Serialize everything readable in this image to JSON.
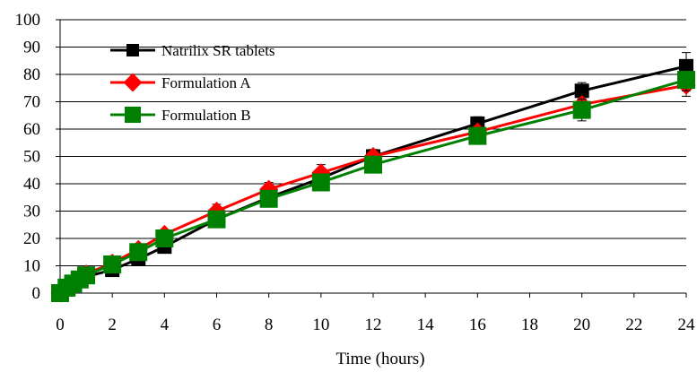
{
  "chart_data": {
    "type": "line",
    "title": "",
    "xlabel": "Time (hours)",
    "ylabel": "",
    "xlim": [
      0,
      24
    ],
    "ylim": [
      0,
      100
    ],
    "x_ticks": [
      0,
      2,
      4,
      6,
      8,
      10,
      12,
      14,
      16,
      18,
      20,
      22,
      24
    ],
    "y_ticks": [
      0,
      10,
      20,
      30,
      40,
      50,
      60,
      70,
      80,
      90,
      100
    ],
    "grid": "horizontal",
    "legend_position": "top-left",
    "series": [
      {
        "name": "Natrilix SR tablets",
        "color": "#000000",
        "marker": "square",
        "x": [
          0,
          0.25,
          0.5,
          0.75,
          1,
          2,
          3,
          4,
          6,
          8,
          10,
          12,
          16,
          20,
          24
        ],
        "y": [
          0,
          1.5,
          3,
          4.5,
          6,
          8.5,
          12.5,
          17,
          27,
          35,
          42,
          50,
          62,
          74,
          83
        ],
        "error": [
          0,
          0,
          0,
          0,
          0,
          1,
          1,
          1,
          2,
          2,
          2.5,
          2.5,
          2.5,
          3,
          5
        ]
      },
      {
        "name": "Formulation A",
        "color": "#ff0000",
        "marker": "diamond",
        "x": [
          0,
          0.25,
          0.5,
          0.75,
          1,
          2,
          3,
          4,
          6,
          8,
          10,
          12,
          16,
          20,
          24
        ],
        "y": [
          0,
          2,
          4,
          5.5,
          7,
          11,
          16,
          21.5,
          30,
          38,
          44,
          50,
          59,
          69,
          76
        ],
        "error": [
          0,
          0,
          0,
          0,
          0,
          1,
          1,
          1,
          2.5,
          2.5,
          3,
          2.5,
          3,
          3,
          4
        ]
      },
      {
        "name": "Formulation B",
        "color": "#008000",
        "marker": "square",
        "x": [
          0,
          0.25,
          0.5,
          0.75,
          1,
          2,
          3,
          4,
          6,
          8,
          10,
          12,
          16,
          20,
          24
        ],
        "y": [
          0,
          2,
          3.5,
          5,
          6.5,
          10.5,
          15,
          20,
          27,
          34.5,
          40.5,
          47,
          57.5,
          67,
          78
        ],
        "error": [
          0,
          0,
          0,
          0,
          0,
          1,
          1,
          1,
          2,
          2,
          2.5,
          2.5,
          2.5,
          4,
          4
        ]
      }
    ]
  }
}
